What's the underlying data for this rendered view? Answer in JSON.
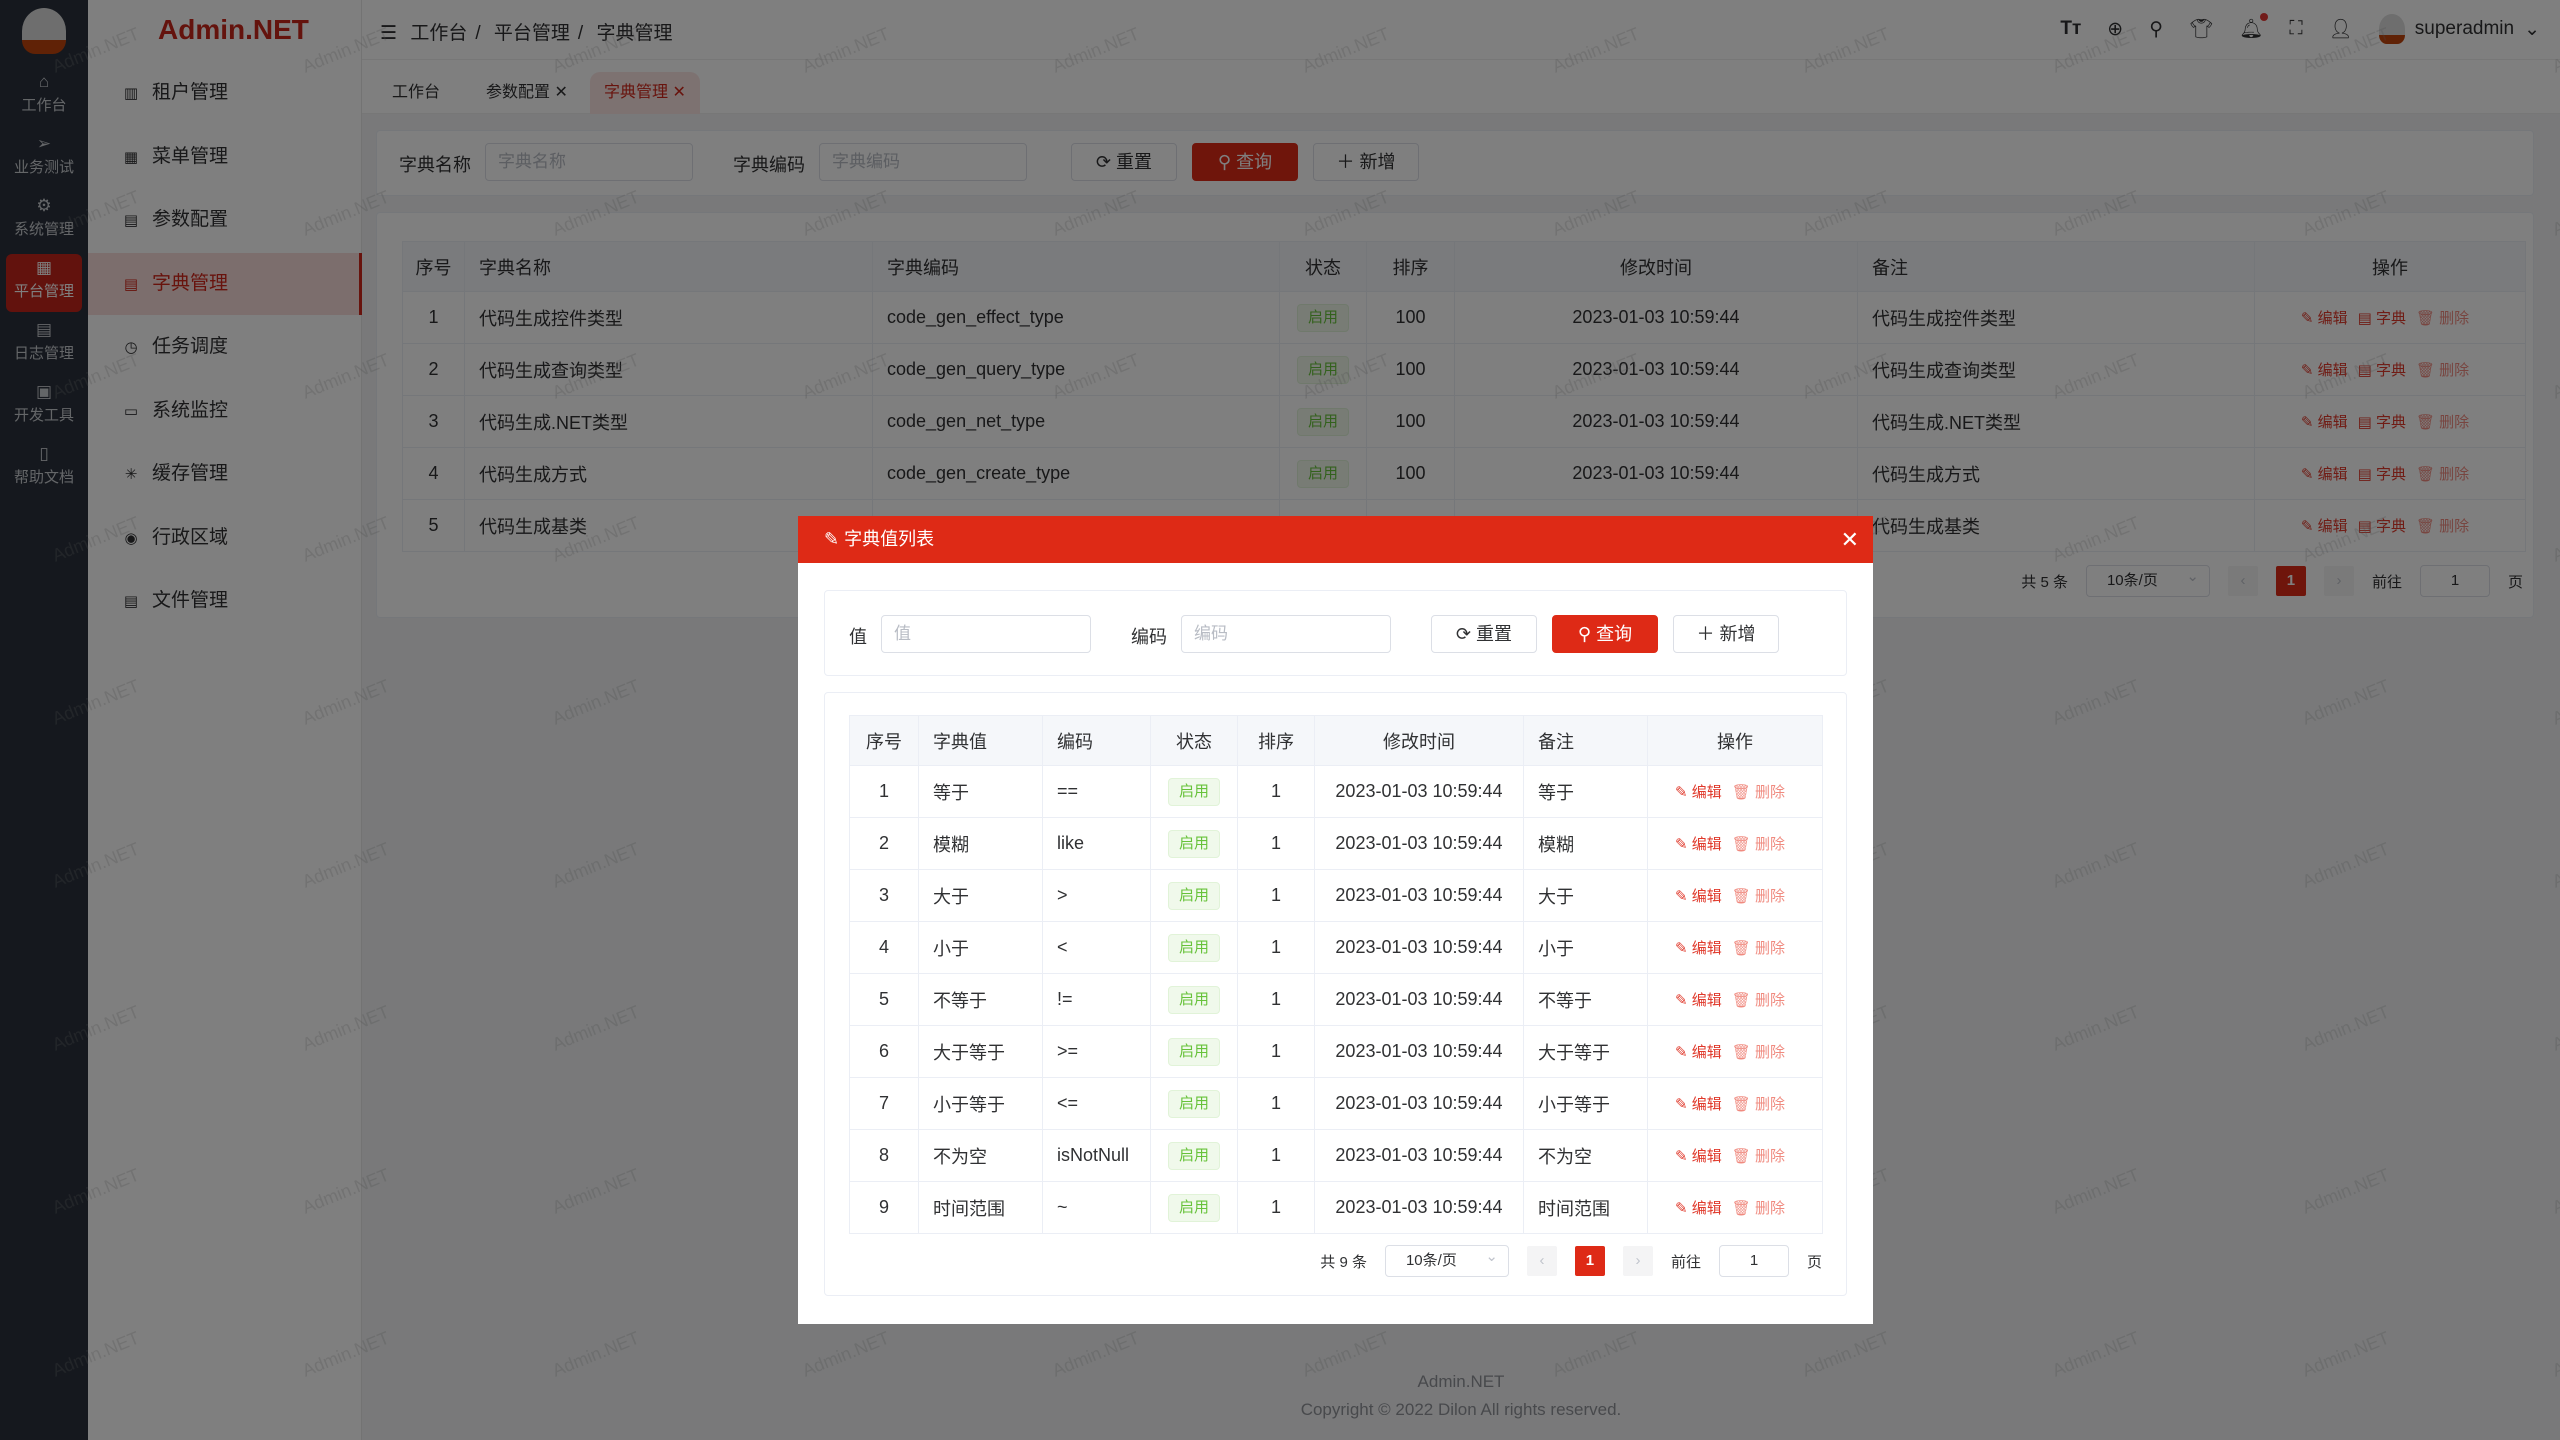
{
  "watermark": "Admin.NET",
  "brand": "Admin.NET",
  "rail": [
    {
      "label": "工作台",
      "icon": "home-icon"
    },
    {
      "label": "业务测试",
      "icon": "send-icon"
    },
    {
      "label": "系统管理",
      "icon": "gear-icon"
    },
    {
      "label": "平台管理",
      "icon": "grid-icon",
      "active": true
    },
    {
      "label": "日志管理",
      "icon": "document-icon"
    },
    {
      "label": "开发工具",
      "icon": "chip-icon"
    },
    {
      "label": "帮助文档",
      "icon": "notebook-icon"
    }
  ],
  "menu": [
    {
      "label": "租户管理",
      "icon": "building-icon"
    },
    {
      "label": "菜单管理",
      "icon": "grid-icon"
    },
    {
      "label": "参数配置",
      "icon": "document-icon"
    },
    {
      "label": "字典管理",
      "icon": "book-icon",
      "active": true
    },
    {
      "label": "任务调度",
      "icon": "alarm-clock-icon"
    },
    {
      "label": "系统监控",
      "icon": "monitor-icon"
    },
    {
      "label": "缓存管理",
      "icon": "loading-icon"
    },
    {
      "label": "行政区域",
      "icon": "location-icon"
    },
    {
      "label": "文件管理",
      "icon": "file-icon"
    }
  ],
  "breadcrumb": [
    "工作台",
    "平台管理",
    "字典管理"
  ],
  "user": {
    "name": "superadmin"
  },
  "tabs": [
    {
      "label": "工作台",
      "closable": false
    },
    {
      "label": "参数配置",
      "closable": true
    },
    {
      "label": "字典管理",
      "closable": true,
      "active": true
    }
  ],
  "search": {
    "name_label": "字典名称",
    "name_placeholder": "字典名称",
    "code_label": "字典编码",
    "code_placeholder": "字典编码",
    "reset": "重置",
    "query": "查询",
    "add": "新增"
  },
  "main_table": {
    "headers": [
      "序号",
      "字典名称",
      "字典编码",
      "状态",
      "排序",
      "修改时间",
      "备注",
      "操作"
    ],
    "rows": [
      [
        "1",
        "代码生成控件类型",
        "code_gen_effect_type",
        "启用",
        "100",
        "2023-01-03 10:59:44",
        "代码生成控件类型"
      ],
      [
        "2",
        "代码生成查询类型",
        "code_gen_query_type",
        "启用",
        "100",
        "2023-01-03 10:59:44",
        "代码生成查询类型"
      ],
      [
        "3",
        "代码生成.NET类型",
        "code_gen_net_type",
        "启用",
        "100",
        "2023-01-03 10:59:44",
        "代码生成.NET类型"
      ],
      [
        "4",
        "代码生成方式",
        "code_gen_create_type",
        "启用",
        "100",
        "2023-01-03 10:59:44",
        "代码生成方式"
      ],
      [
        "5",
        "代码生成基类",
        "",
        "",
        "",
        "",
        "代码生成基类"
      ]
    ],
    "actions": {
      "edit": "编辑",
      "dict": "字典",
      "delete": "删除"
    }
  },
  "main_pager": {
    "total": "共 5 条",
    "size": "10条/页",
    "page": "1",
    "goto": "前往",
    "goto_value": "1",
    "unit": "页"
  },
  "modal": {
    "title": "字典值列表",
    "value_label": "值",
    "value_placeholder": "值",
    "code_label": "编码",
    "code_placeholder": "编码",
    "reset": "重置",
    "query": "查询",
    "add": "新增",
    "headers": [
      "序号",
      "字典值",
      "编码",
      "状态",
      "排序",
      "修改时间",
      "备注",
      "操作"
    ],
    "rows": [
      [
        "1",
        "等于",
        "==",
        "启用",
        "1",
        "2023-01-03 10:59:44",
        "等于"
      ],
      [
        "2",
        "模糊",
        "like",
        "启用",
        "1",
        "2023-01-03 10:59:44",
        "模糊"
      ],
      [
        "3",
        "大于",
        ">",
        "启用",
        "1",
        "2023-01-03 10:59:44",
        "大于"
      ],
      [
        "4",
        "小于",
        "<",
        "启用",
        "1",
        "2023-01-03 10:59:44",
        "小于"
      ],
      [
        "5",
        "不等于",
        "!=",
        "启用",
        "1",
        "2023-01-03 10:59:44",
        "不等于"
      ],
      [
        "6",
        "大于等于",
        ">=",
        "启用",
        "1",
        "2023-01-03 10:59:44",
        "大于等于"
      ],
      [
        "7",
        "小于等于",
        "<=",
        "启用",
        "1",
        "2023-01-03 10:59:44",
        "小于等于"
      ],
      [
        "8",
        "不为空",
        "isNotNull",
        "启用",
        "1",
        "2023-01-03 10:59:44",
        "不为空"
      ],
      [
        "9",
        "时间范围",
        "~",
        "启用",
        "1",
        "2023-01-03 10:59:44",
        "时间范围"
      ]
    ],
    "actions": {
      "edit": "编辑",
      "delete": "删除"
    },
    "pager": {
      "total": "共 9 条",
      "size": "10条/页",
      "page": "1",
      "goto": "前往",
      "goto_value": "1",
      "unit": "页"
    }
  },
  "footer": {
    "name": "Admin.NET",
    "copyright": "Copyright © 2022 Dilon All rights reserved."
  },
  "colors": {
    "accent": "#de2a16",
    "sidebar": "#2a313c",
    "success": "#67c23a"
  }
}
